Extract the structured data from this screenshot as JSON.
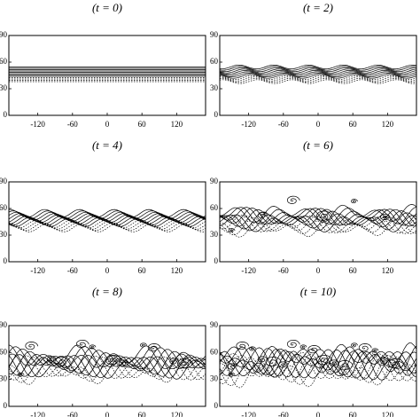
{
  "chart_data": [
    {
      "type": "contour",
      "title": "(t = 0)",
      "xlim": [
        -170,
        170
      ],
      "ylim": [
        0,
        90
      ],
      "xticks": [
        -120,
        -60,
        0,
        60,
        120
      ],
      "yticks": [
        0,
        30,
        60,
        90
      ]
    },
    {
      "type": "contour",
      "title": "(t = 2)",
      "xlim": [
        -170,
        170
      ],
      "ylim": [
        0,
        90
      ],
      "xticks": [
        -120,
        -60,
        0,
        60,
        120
      ],
      "yticks": [
        0,
        30,
        60,
        90
      ]
    },
    {
      "type": "contour",
      "title": "(t = 4)",
      "xlim": [
        -170,
        170
      ],
      "ylim": [
        0,
        90
      ],
      "xticks": [
        -120,
        -60,
        0,
        60,
        120
      ],
      "yticks": [
        0,
        30,
        60,
        90
      ]
    },
    {
      "type": "contour",
      "title": "(t = 6)",
      "xlim": [
        -170,
        170
      ],
      "ylim": [
        0,
        90
      ],
      "xticks": [
        -120,
        -60,
        0,
        60,
        120
      ],
      "yticks": [
        0,
        30,
        60,
        90
      ]
    },
    {
      "type": "contour",
      "title": "(t = 8)",
      "xlim": [
        -170,
        170
      ],
      "ylim": [
        0,
        90
      ],
      "xticks": [
        -120,
        -60,
        0,
        60,
        120
      ],
      "yticks": [
        0,
        30,
        60,
        90
      ]
    },
    {
      "type": "contour",
      "title": "(t = 10)",
      "xlim": [
        -170,
        170
      ],
      "ylim": [
        0,
        90
      ],
      "xticks": [
        -120,
        -60,
        0,
        60,
        120
      ],
      "yticks": [
        0,
        30,
        60,
        90
      ]
    }
  ]
}
